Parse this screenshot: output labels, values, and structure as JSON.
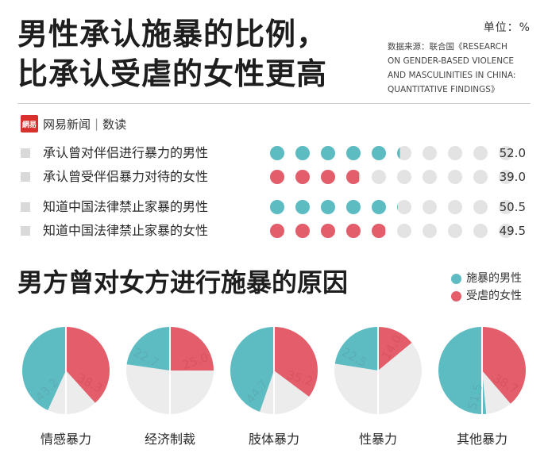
{
  "colors": {
    "male": "#5dbcc2",
    "female": "#e35d6a",
    "empty": "#e3e3e3",
    "pie_bg": "#ececec"
  },
  "header": {
    "title_line1": "男性承认施暴的比例，",
    "title_line2": "比承认受虐的女性更高",
    "unit": "单位：%",
    "source_lines": [
      "数据来源：联合国《RESEARCH",
      "ON GENDER-BASED VIOLENCE",
      "AND MASCULINITIES IN CHINA:",
      "QUANTITATIVE FINDINGS》"
    ]
  },
  "brand": {
    "logo_text": "網易",
    "name": "网易新闻",
    "sub": "数读"
  },
  "section2": {
    "title": "男方曾对女方进行施暴的原因"
  },
  "legend": {
    "male": "施暴的男性",
    "female": "受虐的女性"
  },
  "chart_data": [
    {
      "type": "dot-matrix",
      "max": 100,
      "rows": [
        {
          "label": "承认曾对伴侣进行暴力的男性",
          "value": 52.0,
          "value_label": "52.0",
          "group": "male"
        },
        {
          "label": "承认曾受伴侣暴力对待的女性",
          "value": 39.0,
          "value_label": "39.0",
          "group": "female"
        },
        {
          "label": "知道中国法律禁止家暴的男性",
          "value": 50.5,
          "value_label": "50.5",
          "group": "male"
        },
        {
          "label": "知道中国法律禁止家暴的女性",
          "value": 49.5,
          "value_label": "49.5",
          "group": "female"
        }
      ]
    },
    {
      "type": "pie",
      "series": [
        {
          "name": "施暴的男性"
        },
        {
          "name": "受虐的女性"
        }
      ],
      "categories": [
        "情感暴力",
        "经济制裁",
        "肢体暴力",
        "性暴力",
        "其他暴力"
      ],
      "male_values": [
        43.2,
        22.7,
        44.7,
        22.5,
        51.5
      ],
      "female_values": [
        38.3,
        25.0,
        35.2,
        14.0,
        38.7
      ]
    }
  ]
}
